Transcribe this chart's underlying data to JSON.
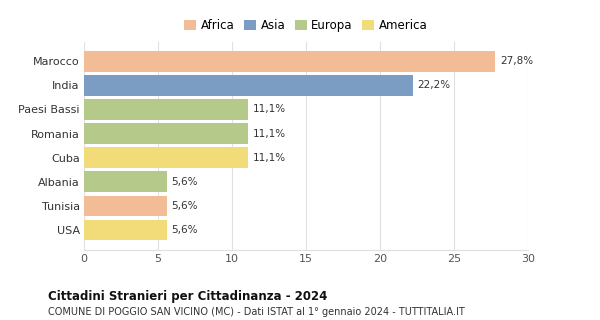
{
  "categories": [
    "Marocco",
    "India",
    "Paesi Bassi",
    "Romania",
    "Cuba",
    "Albania",
    "Tunisia",
    "USA"
  ],
  "values": [
    27.8,
    22.2,
    11.1,
    11.1,
    11.1,
    5.6,
    5.6,
    5.6
  ],
  "labels": [
    "27,8%",
    "22,2%",
    "11,1%",
    "11,1%",
    "11,1%",
    "5,6%",
    "5,6%",
    "5,6%"
  ],
  "colors": [
    "#F2BC96",
    "#7B9DC4",
    "#B5C98A",
    "#B5C98A",
    "#F2DC7A",
    "#B5C98A",
    "#F2BC96",
    "#F2DC7A"
  ],
  "legend_entries": [
    "Africa",
    "Asia",
    "Europa",
    "America"
  ],
  "legend_colors": [
    "#F2BC96",
    "#7B9DC4",
    "#B5C98A",
    "#F2DC7A"
  ],
  "title": "Cittadini Stranieri per Cittadinanza - 2024",
  "subtitle": "COMUNE DI POGGIO SAN VICINO (MC) - Dati ISTAT al 1° gennaio 2024 - TUTTITALIA.IT",
  "xlim": [
    0,
    30
  ],
  "xticks": [
    0,
    5,
    10,
    15,
    20,
    25,
    30
  ],
  "background_color": "#ffffff",
  "grid_color": "#e0e0e0"
}
